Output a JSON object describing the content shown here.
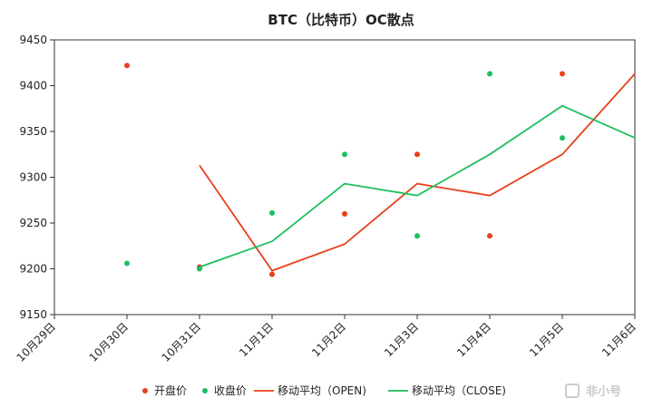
{
  "chart_data": {
    "type": "scatter",
    "title": "BTC（比特币）OC散点",
    "xlabel": "",
    "ylabel": "",
    "categories": [
      "10月29日",
      "10月30日",
      "10月31日",
      "11月1日",
      "11月2日",
      "11月3日",
      "11月4日",
      "11月5日",
      "11月6日"
    ],
    "ylim": [
      9150,
      9450
    ],
    "yticks": [
      9150,
      9200,
      9250,
      9300,
      9350,
      9400,
      9450
    ],
    "grid": false,
    "legend_position": "bottom",
    "series": [
      {
        "name": "开盘价",
        "kind": "scatter",
        "color": "#e8401c",
        "values": [
          null,
          9422,
          9202,
          9194,
          9260,
          9325,
          9236,
          9413,
          null
        ]
      },
      {
        "name": "收盘价",
        "kind": "scatter",
        "color": "#1fbf5f",
        "values": [
          null,
          9206,
          9200,
          9261,
          9325,
          9236,
          9413,
          9343,
          null
        ]
      },
      {
        "name": "移动平均（OPEN)",
        "kind": "line",
        "color": "#e8401c",
        "values": [
          null,
          null,
          9313,
          9198,
          9227,
          9293,
          9280,
          9325,
          9413
        ]
      },
      {
        "name": "移动平均（CLOSE)",
        "kind": "line",
        "color": "#1fbf5f",
        "values": [
          null,
          null,
          9202,
          9230,
          9293,
          9280,
          9325,
          9378,
          9343
        ]
      }
    ]
  },
  "watermark": {
    "text": "非小号",
    "icon": "feixiaohao-logo-icon"
  }
}
